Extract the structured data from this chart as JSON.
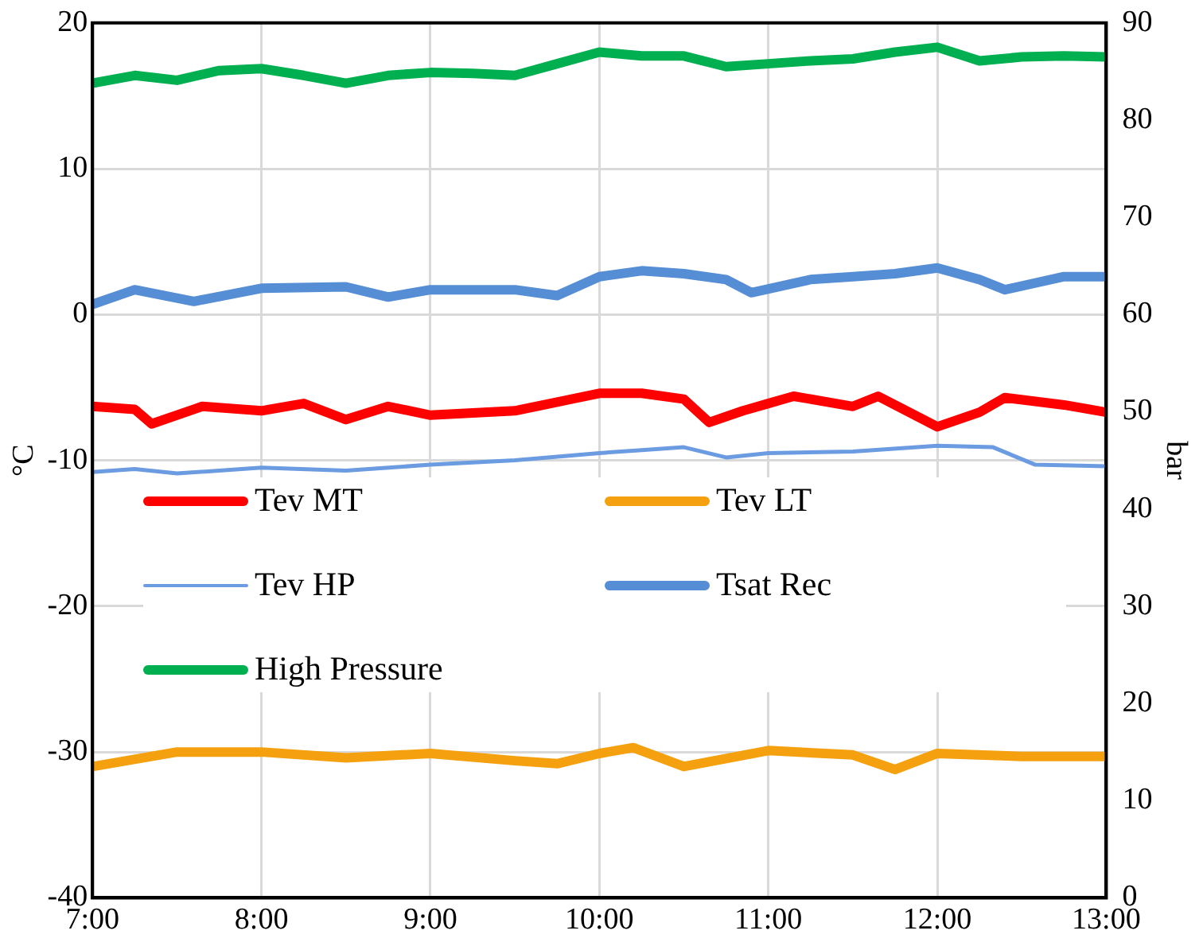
{
  "chart_data": {
    "type": "line",
    "ylabel": "°C",
    "y2label": "bar",
    "xlim": [
      7,
      13
    ],
    "xticks": [
      {
        "value": 7,
        "label": "7:00"
      },
      {
        "value": 8,
        "label": "8:00"
      },
      {
        "value": 9,
        "label": "9:00"
      },
      {
        "value": 10,
        "label": "10:00"
      },
      {
        "value": 11,
        "label": "11:00"
      },
      {
        "value": 12,
        "label": "12:00"
      },
      {
        "value": 13,
        "label": "13:00"
      }
    ],
    "ylim": [
      -40,
      20
    ],
    "yticks": [
      -40,
      -30,
      -20,
      -10,
      0,
      10,
      20
    ],
    "y2lim": [
      0,
      90
    ],
    "y2ticks": [
      0,
      10,
      20,
      30,
      40,
      50,
      60,
      70,
      80,
      90
    ],
    "grid": true,
    "legend": "left",
    "marker": "none",
    "series": [
      {
        "name": "Tev MT",
        "color": "#ff0000",
        "x": [
          7,
          7.25,
          7.35,
          7.65,
          8,
          8.25,
          8.5,
          8.75,
          9,
          9.5,
          9.75,
          10,
          10.25,
          10.5,
          10.65,
          10.85,
          11,
          11.15,
          11.5,
          11.65,
          12,
          12.25,
          12.4,
          12.75,
          13
        ],
        "values": [
          -6.3,
          -6.5,
          -7.5,
          -6.3,
          -6.6,
          -6.1,
          -7.2,
          -6.3,
          -6.9,
          -6.6,
          -6.0,
          -5.4,
          -5.4,
          -5.8,
          -7.4,
          -6.6,
          -6.1,
          -5.6,
          -6.3,
          -5.6,
          -7.7,
          -6.7,
          -5.7,
          -6.2,
          -6.7
        ]
      },
      {
        "name": "Tev LT",
        "color": "#f5a00f",
        "x": [
          7,
          7.5,
          8,
          8.5,
          9,
          9.5,
          9.75,
          10,
          10.2,
          10.5,
          11,
          11.5,
          11.75,
          12,
          12.5,
          13
        ],
        "values": [
          -31.0,
          -30.0,
          -30.0,
          -30.4,
          -30.1,
          -30.6,
          -30.8,
          -30.1,
          -29.7,
          -31.0,
          -29.9,
          -30.2,
          -31.2,
          -30.1,
          -30.3,
          -30.3
        ]
      },
      {
        "name": "Tev HP",
        "color": "#6b9be0",
        "x": [
          7,
          7.25,
          7.5,
          8,
          8.5,
          9,
          9.5,
          10,
          10.25,
          10.5,
          10.75,
          11,
          11.5,
          12,
          12.33,
          12.58,
          13
        ],
        "values": [
          -10.8,
          -10.6,
          -10.9,
          -10.5,
          -10.7,
          -10.3,
          -10.0,
          -9.5,
          -9.3,
          -9.1,
          -9.8,
          -9.5,
          -9.4,
          -9.0,
          -9.1,
          -10.3,
          -10.4
        ]
      },
      {
        "name": "Tsat Rec",
        "color": "#558ed5",
        "x": [
          7,
          7.25,
          7.6,
          8,
          8.5,
          8.75,
          9,
          9.5,
          9.75,
          10,
          10.25,
          10.5,
          10.75,
          10.9,
          11.25,
          11.5,
          11.75,
          12,
          12.25,
          12.4,
          12.75,
          13
        ],
        "values": [
          0.7,
          1.7,
          0.9,
          1.8,
          1.9,
          1.2,
          1.7,
          1.7,
          1.3,
          2.6,
          3.0,
          2.8,
          2.4,
          1.5,
          2.4,
          2.6,
          2.8,
          3.2,
          2.4,
          1.7,
          2.6,
          2.6
        ]
      },
      {
        "name": "High Pressure",
        "color": "#00b050",
        "axis": "y2",
        "x": [
          7,
          7.25,
          7.5,
          7.75,
          8,
          8.25,
          8.5,
          8.75,
          9,
          9.25,
          9.5,
          9.75,
          10,
          10.25,
          10.5,
          10.75,
          11,
          11.25,
          11.5,
          11.75,
          12,
          12.25,
          12.5,
          12.75,
          13
        ],
        "values": [
          83.8,
          84.6,
          84.1,
          85.1,
          85.3,
          84.6,
          83.8,
          84.6,
          84.9,
          84.8,
          84.6,
          85.8,
          87.0,
          86.6,
          86.6,
          85.5,
          85.8,
          86.1,
          86.3,
          87.0,
          87.5,
          86.1,
          86.5,
          86.6,
          86.5
        ]
      }
    ]
  }
}
